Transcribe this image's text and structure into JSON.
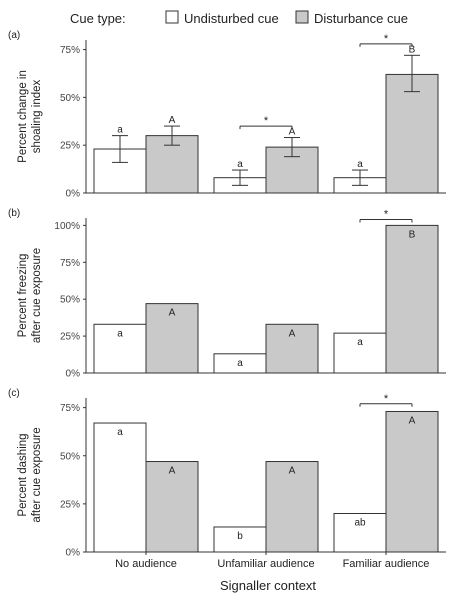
{
  "legend": {
    "title": "Cue type:",
    "entries": [
      {
        "label": "Undisturbed cue",
        "color": "#ffffff"
      },
      {
        "label": "Disturbance cue",
        "color": "#c9c9c9"
      }
    ]
  },
  "xlabel": "Signaller context",
  "chart_data": [
    {
      "type": "bar",
      "panel_label": "(a)",
      "ylabel": [
        "Percent change in",
        "shoaling index"
      ],
      "categories": [
        "No audience",
        "Unfamiliar audience",
        "Familiar audience"
      ],
      "ylim": [
        0,
        80
      ],
      "yticks": [
        "0%",
        "25%",
        "50%",
        "75%"
      ],
      "yticks_values": [
        0,
        25,
        50,
        75
      ],
      "error_bars": true,
      "series": [
        {
          "name": "Undisturbed cue",
          "color": "#ffffff",
          "values": [
            23,
            8,
            8
          ],
          "err_low": [
            16,
            4,
            4
          ],
          "err_high": [
            30,
            12,
            12
          ],
          "letters": [
            "a",
            "a",
            "a"
          ]
        },
        {
          "name": "Disturbance cue",
          "color": "#c9c9c9",
          "values": [
            30,
            24,
            62
          ],
          "err_low": [
            25,
            19,
            53
          ],
          "err_high": [
            35,
            29,
            72
          ],
          "letters": [
            "A",
            "A",
            "B"
          ]
        }
      ],
      "significance": [
        {
          "category": 1,
          "marker": "*",
          "y": 35
        },
        {
          "category": 2,
          "marker": "*",
          "y": 78
        }
      ]
    },
    {
      "type": "bar",
      "panel_label": "(b)",
      "ylabel": [
        "Percent freezing",
        "after cue exposure"
      ],
      "categories": [
        "No audience",
        "Unfamiliar audience",
        "Familiar audience"
      ],
      "ylim": [
        0,
        105
      ],
      "yticks": [
        "0%",
        "25%",
        "50%",
        "75%",
        "100%"
      ],
      "yticks_values": [
        0,
        25,
        50,
        75,
        100
      ],
      "error_bars": false,
      "series": [
        {
          "name": "Undisturbed cue",
          "color": "#ffffff",
          "values": [
            33,
            13,
            27
          ],
          "letters": [
            "a",
            "a",
            "a"
          ]
        },
        {
          "name": "Disturbance cue",
          "color": "#c9c9c9",
          "values": [
            47,
            33,
            100
          ],
          "letters": [
            "A",
            "A",
            "B"
          ]
        }
      ],
      "significance": [
        {
          "category": 2,
          "marker": "*",
          "y": 104
        }
      ]
    },
    {
      "type": "bar",
      "panel_label": "(c)",
      "ylabel": [
        "Percent dashing",
        "after cue exposure"
      ],
      "categories": [
        "No audience",
        "Unfamiliar audience",
        "Familiar audience"
      ],
      "ylim": [
        0,
        80
      ],
      "yticks": [
        "0%",
        "25%",
        "50%",
        "75%"
      ],
      "yticks_values": [
        0,
        25,
        50,
        75
      ],
      "error_bars": false,
      "series": [
        {
          "name": "Undisturbed cue",
          "color": "#ffffff",
          "values": [
            67,
            13,
            20
          ],
          "letters": [
            "a",
            "b",
            "ab"
          ]
        },
        {
          "name": "Disturbance cue",
          "color": "#c9c9c9",
          "values": [
            47,
            47,
            73
          ],
          "letters": [
            "A",
            "A",
            "A"
          ]
        }
      ],
      "significance": [
        {
          "category": 2,
          "marker": "*",
          "y": 77
        }
      ]
    }
  ]
}
